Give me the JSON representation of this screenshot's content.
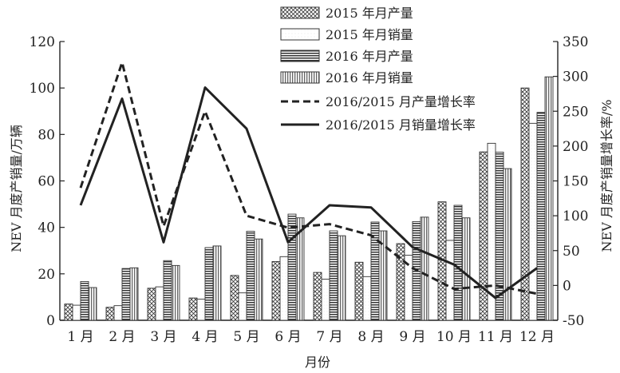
{
  "chart_data": {
    "type": "bar",
    "xlabel": "月份",
    "ylabel": "NEV 月度产销量/万辆",
    "y2label": "NEV 月度产销量增长率/%",
    "ylim": [
      0,
      120
    ],
    "y2lim": [
      -50,
      350
    ],
    "yticks": [
      "0",
      "20",
      "40",
      "60",
      "80",
      "100",
      "120"
    ],
    "y2ticks": [
      "-50",
      "0",
      "50",
      "100",
      "150",
      "200",
      "250",
      "300",
      "350"
    ],
    "categories": [
      "1 月",
      "2 月",
      "3 月",
      "4 月",
      "5 月",
      "6 月",
      "7 月",
      "8 月",
      "9 月",
      "10 月",
      "11 月",
      "12 月"
    ],
    "grid": false,
    "legend_position": "top-center",
    "bar_series": [
      {
        "name": "2015 年月产量",
        "pattern": "crosshatch",
        "values": [
          7.0,
          5.6,
          13.8,
          9.6,
          19.3,
          25.3,
          20.6,
          25.0,
          33.0,
          51.0,
          72.5,
          100.0
        ]
      },
      {
        "name": "2015 年月销量",
        "pattern": "plain",
        "values": [
          6.5,
          6.3,
          14.4,
          9.1,
          11.8,
          27.4,
          17.7,
          18.8,
          28.0,
          34.4,
          76.2,
          84.8
        ]
      },
      {
        "name": "2016 年月产量",
        "pattern": "horizontal",
        "values": [
          16.7,
          22.3,
          25.7,
          31.3,
          38.3,
          45.7,
          38.5,
          42.3,
          42.5,
          49.5,
          72.4,
          89.5
        ]
      },
      {
        "name": "2016 年月销量",
        "pattern": "vertical",
        "values": [
          14.1,
          22.6,
          23.6,
          32.0,
          35.0,
          44.1,
          36.4,
          38.5,
          44.4,
          44.1,
          65.3,
          104.8
        ]
      }
    ],
    "line_series": [
      {
        "name": "2016/2015 月产量增长率",
        "style": "dashed",
        "axis": "right",
        "values": [
          140,
          320,
          85,
          250,
          100,
          83,
          88,
          72,
          25,
          -5,
          0,
          -12
        ]
      },
      {
        "name": "2016/2015 月销量增长率",
        "style": "solid",
        "axis": "right",
        "values": [
          115,
          268,
          62,
          284,
          225,
          62,
          115,
          112,
          55,
          30,
          -18,
          25
        ]
      }
    ]
  }
}
